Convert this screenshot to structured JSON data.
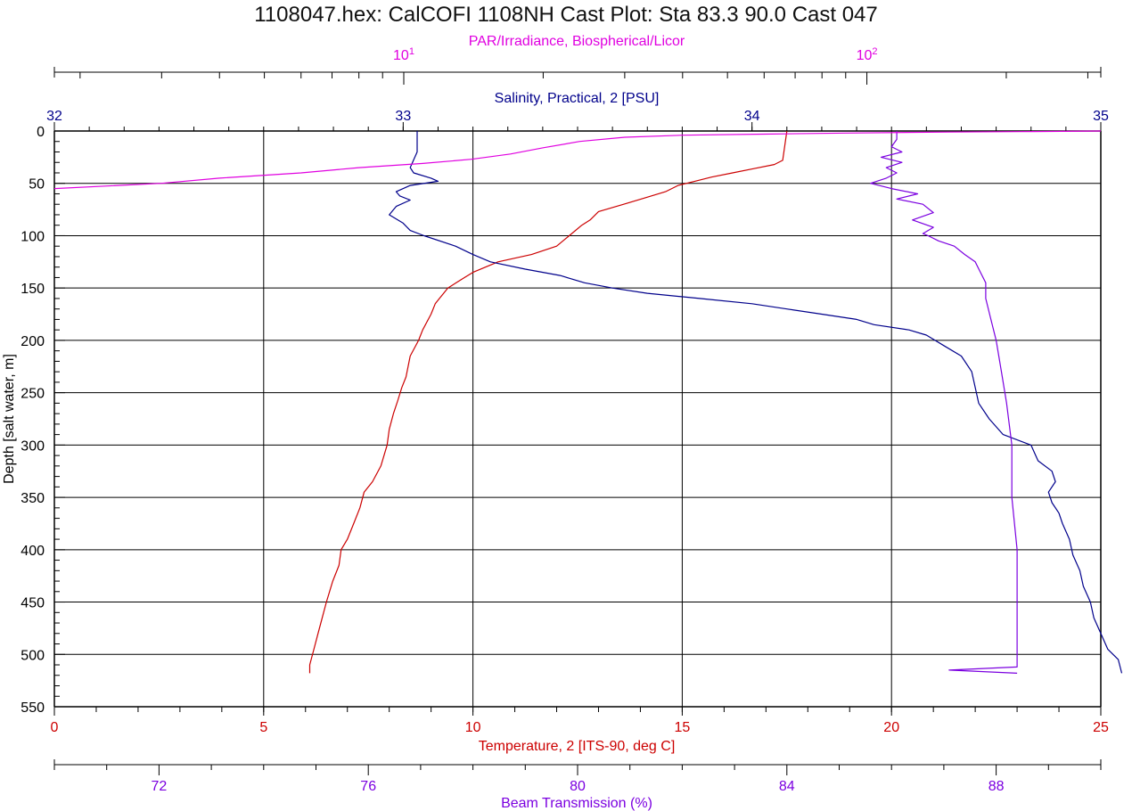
{
  "chart_data": {
    "type": "line",
    "title": "1108047.hex: CalCOFI 1108NH Cast Plot: Sta 83.3  90.0  Cast 047",
    "y_axis": {
      "label": "Depth [salt water, m]",
      "range": [
        0,
        550
      ],
      "inverted": true,
      "ticks": [
        "0",
        "50",
        "100",
        "150",
        "200",
        "250",
        "300",
        "350",
        "400",
        "450",
        "500",
        "550"
      ]
    },
    "axes": {
      "par": {
        "label": "PAR/Irradiance, Biospherical/Licor",
        "scale": "log",
        "range": [
          1.76,
          320
        ],
        "tick_labels": [
          {
            "base": "10",
            "exp": "1"
          },
          {
            "base": "10",
            "exp": "2"
          }
        ],
        "color": "#e000e0"
      },
      "salinity": {
        "label": "Salinity, Practical, 2 [PSU]",
        "range": [
          32,
          35
        ],
        "ticks": [
          "32",
          "33",
          "34",
          "35"
        ],
        "color": "#00008b"
      },
      "temperature": {
        "label": "Temperature, 2 [ITS-90, deg C]",
        "range": [
          0,
          25
        ],
        "ticks": [
          "0",
          "5",
          "10",
          "15",
          "20",
          "25"
        ],
        "color": "#cc0000"
      },
      "beam": {
        "label": "Beam Transmission (%)",
        "range": [
          70,
          90
        ],
        "ticks": [
          "72",
          "76",
          "80",
          "84",
          "88"
        ],
        "color": "#7b00e0"
      }
    },
    "series": [
      {
        "name": "Temperature",
        "axis": "temperature",
        "color": "#cc0000",
        "points": [
          [
            17.5,
            0
          ],
          [
            17.4,
            28
          ],
          [
            17.2,
            32
          ],
          [
            16.7,
            36
          ],
          [
            16.2,
            40
          ],
          [
            15.7,
            44
          ],
          [
            15.3,
            48
          ],
          [
            14.9,
            52
          ],
          [
            14.6,
            58
          ],
          [
            14.1,
            64
          ],
          [
            13.6,
            70
          ],
          [
            13.0,
            77
          ],
          [
            12.8,
            85
          ],
          [
            12.6,
            90
          ],
          [
            12.3,
            100
          ],
          [
            12.0,
            110
          ],
          [
            11.4,
            118
          ],
          [
            10.6,
            125
          ],
          [
            10.0,
            135
          ],
          [
            9.8,
            140
          ],
          [
            9.6,
            145
          ],
          [
            9.4,
            150
          ],
          [
            9.3,
            155
          ],
          [
            9.2,
            160
          ],
          [
            9.1,
            165
          ],
          [
            9.0,
            175
          ],
          [
            8.8,
            190
          ],
          [
            8.7,
            200
          ],
          [
            8.5,
            215
          ],
          [
            8.4,
            235
          ],
          [
            8.3,
            245
          ],
          [
            8.2,
            258
          ],
          [
            8.1,
            270
          ],
          [
            8.0,
            285
          ],
          [
            7.95,
            300
          ],
          [
            7.8,
            320
          ],
          [
            7.6,
            335
          ],
          [
            7.4,
            345
          ],
          [
            7.3,
            360
          ],
          [
            7.15,
            375
          ],
          [
            7.0,
            390
          ],
          [
            6.85,
            400
          ],
          [
            6.8,
            415
          ],
          [
            6.65,
            430
          ],
          [
            6.5,
            450
          ],
          [
            6.4,
            465
          ],
          [
            6.3,
            480
          ],
          [
            6.2,
            495
          ],
          [
            6.1,
            510
          ],
          [
            6.1,
            518
          ]
        ]
      },
      {
        "name": "Salinity",
        "axis": "salinity",
        "color": "#00008b",
        "points": [
          [
            33.04,
            0
          ],
          [
            33.04,
            20
          ],
          [
            33.02,
            35
          ],
          [
            33.03,
            40
          ],
          [
            33.08,
            45
          ],
          [
            33.1,
            48
          ],
          [
            33.02,
            52
          ],
          [
            32.98,
            58
          ],
          [
            32.99,
            62
          ],
          [
            33.02,
            66
          ],
          [
            32.98,
            72
          ],
          [
            32.96,
            80
          ],
          [
            33.0,
            88
          ],
          [
            33.02,
            95
          ],
          [
            33.06,
            100
          ],
          [
            33.15,
            110
          ],
          [
            33.2,
            118
          ],
          [
            33.25,
            125
          ],
          [
            33.35,
            132
          ],
          [
            33.45,
            138
          ],
          [
            33.52,
            145
          ],
          [
            33.6,
            150
          ],
          [
            33.7,
            155
          ],
          [
            33.85,
            160
          ],
          [
            34.0,
            165
          ],
          [
            34.1,
            170
          ],
          [
            34.2,
            175
          ],
          [
            34.3,
            180
          ],
          [
            34.35,
            185
          ],
          [
            34.45,
            190
          ],
          [
            34.5,
            195
          ],
          [
            34.55,
            205
          ],
          [
            34.6,
            215
          ],
          [
            34.63,
            230
          ],
          [
            34.64,
            245
          ],
          [
            34.65,
            260
          ],
          [
            34.68,
            275
          ],
          [
            34.72,
            290
          ],
          [
            34.8,
            300
          ],
          [
            34.82,
            315
          ],
          [
            34.86,
            325
          ],
          [
            34.87,
            335
          ],
          [
            34.85,
            345
          ],
          [
            34.86,
            355
          ],
          [
            34.88,
            365
          ],
          [
            34.89,
            375
          ],
          [
            34.91,
            390
          ],
          [
            34.92,
            405
          ],
          [
            34.94,
            420
          ],
          [
            34.95,
            435
          ],
          [
            34.97,
            450
          ],
          [
            34.98,
            465
          ],
          [
            35.0,
            480
          ],
          [
            35.02,
            495
          ],
          [
            35.05,
            505
          ],
          [
            35.06,
            518
          ]
        ]
      },
      {
        "name": "Beam Transmission",
        "axis": "beam",
        "color": "#7b00e0",
        "points": [
          [
            86.1,
            0
          ],
          [
            86.1,
            8
          ],
          [
            86.0,
            15
          ],
          [
            86.2,
            20
          ],
          [
            85.8,
            25
          ],
          [
            86.2,
            30
          ],
          [
            85.9,
            35
          ],
          [
            86.1,
            40
          ],
          [
            85.9,
            45
          ],
          [
            85.6,
            50
          ],
          [
            86.0,
            55
          ],
          [
            86.5,
            60
          ],
          [
            86.1,
            65
          ],
          [
            86.6,
            70
          ],
          [
            86.8,
            78
          ],
          [
            86.4,
            85
          ],
          [
            86.8,
            92
          ],
          [
            86.6,
            98
          ],
          [
            86.7,
            100
          ],
          [
            86.9,
            105
          ],
          [
            87.2,
            110
          ],
          [
            87.4,
            118
          ],
          [
            87.6,
            125
          ],
          [
            87.7,
            135
          ],
          [
            87.8,
            145
          ],
          [
            87.8,
            160
          ],
          [
            87.9,
            180
          ],
          [
            88.0,
            200
          ],
          [
            88.1,
            230
          ],
          [
            88.2,
            260
          ],
          [
            88.3,
            300
          ],
          [
            88.3,
            350
          ],
          [
            88.4,
            400
          ],
          [
            88.4,
            450
          ],
          [
            88.4,
            500
          ],
          [
            88.4,
            512
          ],
          [
            87.1,
            515
          ],
          [
            88.4,
            518
          ]
        ]
      },
      {
        "name": "PAR",
        "axis": "par",
        "color": "#e000e0",
        "points": [
          [
            320,
            0
          ],
          [
            230,
            0.5
          ],
          [
            150,
            1
          ],
          [
            90,
            2
          ],
          [
            60,
            3
          ],
          [
            40,
            4
          ],
          [
            30,
            6
          ],
          [
            24,
            10
          ],
          [
            20,
            16
          ],
          [
            17,
            22
          ],
          [
            14,
            27
          ],
          [
            11,
            31
          ],
          [
            8,
            35
          ],
          [
            6,
            40
          ],
          [
            4,
            45
          ],
          [
            3,
            50
          ],
          [
            1.76,
            55
          ]
        ]
      }
    ]
  }
}
